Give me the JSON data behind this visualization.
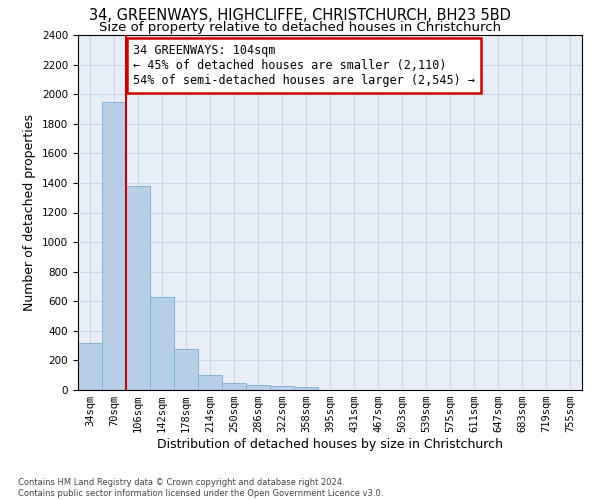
{
  "title_line1": "34, GREENWAYS, HIGHCLIFFE, CHRISTCHURCH, BH23 5BD",
  "title_line2": "Size of property relative to detached houses in Christchurch",
  "xlabel": "Distribution of detached houses by size in Christchurch",
  "ylabel": "Number of detached properties",
  "footnote": "Contains HM Land Registry data © Crown copyright and database right 2024.\nContains public sector information licensed under the Open Government Licence v3.0.",
  "bin_labels": [
    "34sqm",
    "70sqm",
    "106sqm",
    "142sqm",
    "178sqm",
    "214sqm",
    "250sqm",
    "286sqm",
    "322sqm",
    "358sqm",
    "395sqm",
    "431sqm",
    "467sqm",
    "503sqm",
    "539sqm",
    "575sqm",
    "611sqm",
    "647sqm",
    "683sqm",
    "719sqm",
    "755sqm"
  ],
  "bar_values": [
    315,
    1950,
    1380,
    630,
    275,
    100,
    47,
    33,
    26,
    21,
    0,
    0,
    0,
    0,
    0,
    0,
    0,
    0,
    0,
    0,
    0
  ],
  "bar_color": "#b8cfe8",
  "bar_edge_color": "#7aaed6",
  "red_line_bin_index": 2,
  "annotation_line1": "34 GREENWAYS: 104sqm",
  "annotation_line2": "← 45% of detached houses are smaller (2,110)",
  "annotation_line3": "54% of semi-detached houses are larger (2,545) →",
  "annotation_box_facecolor": "#ffffff",
  "annotation_border_color": "#cc0000",
  "ylim": [
    0,
    2400
  ],
  "yticks": [
    0,
    200,
    400,
    600,
    800,
    1000,
    1200,
    1400,
    1600,
    1800,
    2000,
    2200,
    2400
  ],
  "grid_color": "#ccd6e8",
  "background_color": "#e8eef8",
  "title_fontsize": 10.5,
  "subtitle_fontsize": 9.5,
  "axis_label_fontsize": 9,
  "tick_fontsize": 7.5,
  "annotation_fontsize": 8.5
}
